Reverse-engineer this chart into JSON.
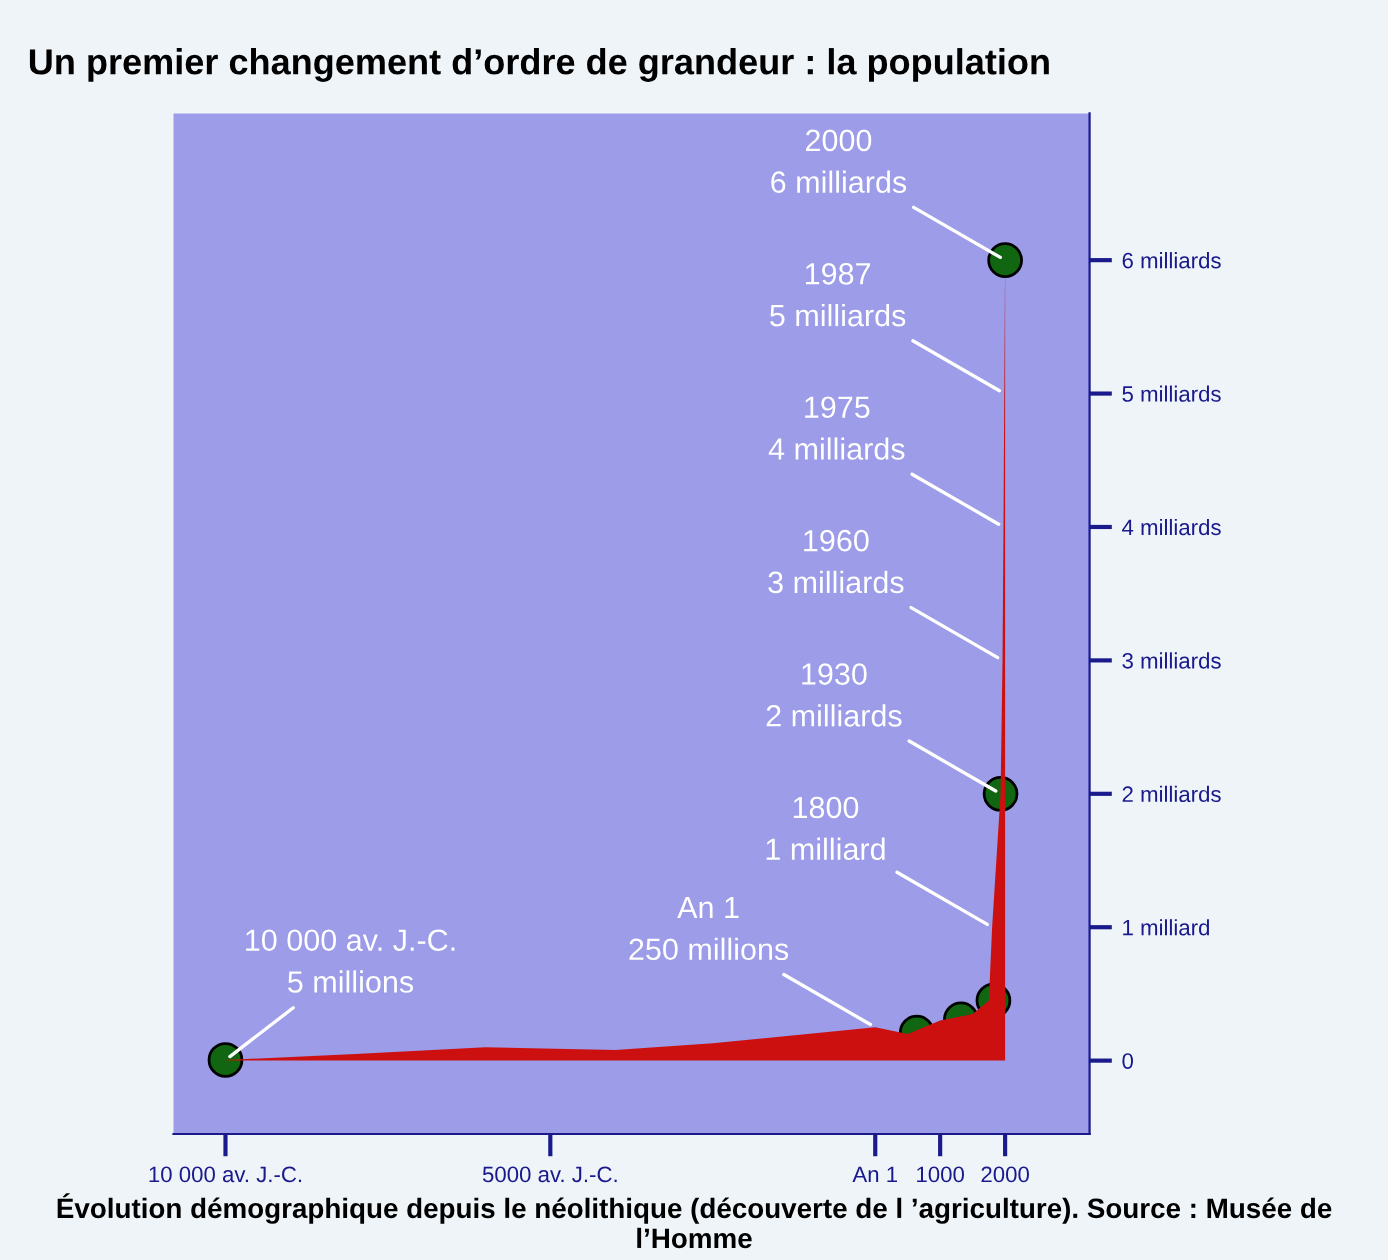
{
  "chart_data": {
    "type": "area",
    "title": "Un premier changement d’ordre de grandeur : la population",
    "x": [
      -10000,
      -8000,
      -6000,
      -4000,
      -2500,
      1,
      500,
      1000,
      1500,
      1750,
      1800,
      1930,
      1960,
      1975,
      1987,
      2000
    ],
    "series": [
      {
        "color": "#cc1010",
        "values": [
          0.005,
          0.05,
          0.1,
          0.08,
          0.13,
          0.25,
          0.2,
          0.3,
          0.35,
          0.45,
          1,
          2,
          3,
          4,
          5,
          6
        ]
      },
      {
        "type": "scatter",
        "marker": "circle",
        "color": "#116611",
        "x": [
          -10000,
          640,
          1320,
          1820,
          1930,
          2000
        ],
        "values": [
          0.005,
          0.21,
          0.31,
          0.45,
          2,
          6
        ]
      }
    ],
    "xlim": [
      -10800,
      3300
    ],
    "ylim": [
      -0.55,
      7.1
    ],
    "xticks": [
      {
        "value": -10000,
        "label": "10 000 av. J.-C."
      },
      {
        "value": -5000,
        "label": "5000 av. J.-C."
      },
      {
        "value": 1,
        "label": "An 1"
      },
      1000,
      2000
    ],
    "yticks": [
      0,
      {
        "value": 1,
        "label": "1 milliard"
      },
      {
        "value": 2,
        "label": "2 milliards"
      },
      {
        "value": 3,
        "label": "3 milliards"
      },
      {
        "value": 4,
        "label": "4 milliards"
      },
      {
        "value": 5,
        "label": "5 milliards"
      },
      {
        "value": 6,
        "label": "6 milliards"
      }
    ],
    "grid": false,
    "legend": false,
    "annotations": [
      {
        "text": "10 000 av. J.-C.\n5 millions",
        "x": -10000,
        "y": 0.005
      },
      {
        "text": "An 1\n250 millions",
        "x": 1,
        "y": 0.25
      },
      {
        "text": "1800\n1 milliard",
        "x": 1800,
        "y": 1
      },
      {
        "text": "1930\n2 milliards",
        "x": 1930,
        "y": 2
      },
      {
        "text": "1960\n3 milliards",
        "x": 1960,
        "y": 3
      },
      {
        "text": "1975\n4 milliards",
        "x": 1975,
        "y": 4
      },
      {
        "text": "1987\n5 milliards",
        "x": 1987,
        "y": 5
      },
      {
        "text": "2000\n6 milliards",
        "x": 2000,
        "y": 6
      },
      "Évolution démographique depuis le néolithique (découverte de l ’agriculture). Source : Musée de l’Homme"
    ]
  }
}
